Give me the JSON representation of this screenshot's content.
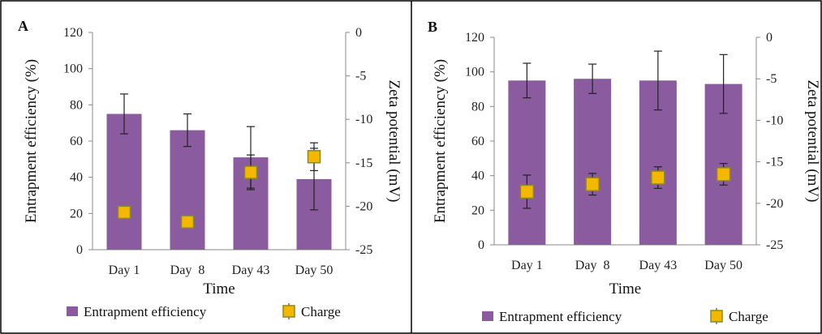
{
  "colors": {
    "bar": "#8a5b9f",
    "marker_fill": "#f5b800",
    "marker_stroke": "#8a8a20",
    "error_bar": "#222222",
    "axis": "#888888",
    "frame": "#000000"
  },
  "chart_data": [
    {
      "type": "bar",
      "panel_label": "A",
      "categories": [
        "Day 1",
        "Day  8",
        "Day 43",
        "Day 50"
      ],
      "xlabel": "Time",
      "ylabel": "Entrapment efficiency (%)",
      "ylim": [
        0,
        120
      ],
      "yticks": [
        "0",
        "20",
        "40",
        "60",
        "80",
        "100",
        "120"
      ],
      "y2label": "Zeta potential (mV)",
      "y2lim": [
        -25,
        0
      ],
      "y2ticks": [
        "-25",
        "-20",
        "-15",
        "-10",
        "-5",
        "0"
      ],
      "grid": false,
      "legend_position": "bottom",
      "series": [
        {
          "name": "Entrapment efficiency",
          "kind": "bar",
          "axis": "left",
          "values": [
            75,
            66,
            51,
            39
          ],
          "error": [
            11,
            9,
            17,
            17
          ]
        },
        {
          "name": "Charge",
          "kind": "marker",
          "axis": "right",
          "values": [
            -20.7,
            -21.8,
            -16.1,
            -14.3
          ],
          "error": [
            0.3,
            0.5,
            2.0,
            1.6
          ]
        }
      ]
    },
    {
      "type": "bar",
      "panel_label": "B",
      "categories": [
        "Day 1",
        "Day  8",
        "Day 43",
        "Day 50"
      ],
      "xlabel": "Time",
      "ylabel": "Entrapment efficiency (%)",
      "ylim": [
        0,
        120
      ],
      "yticks": [
        "0",
        "20",
        "40",
        "60",
        "80",
        "100",
        "120"
      ],
      "y2label": "Zeta potential (mV)",
      "y2lim": [
        -25,
        0
      ],
      "y2ticks": [
        "-25",
        "-20",
        "-15",
        "-10",
        "-5",
        "0"
      ],
      "grid": false,
      "legend_position": "bottom",
      "series": [
        {
          "name": "Entrapment efficiency",
          "kind": "bar",
          "axis": "left",
          "values": [
            95,
            96,
            95,
            93
          ],
          "error": [
            10,
            8.5,
            17,
            17
          ]
        },
        {
          "name": "Charge",
          "kind": "marker",
          "axis": "right",
          "values": [
            -18.6,
            -17.7,
            -16.9,
            -16.5
          ],
          "error": [
            2.0,
            1.3,
            1.3,
            1.3
          ]
        }
      ]
    }
  ]
}
